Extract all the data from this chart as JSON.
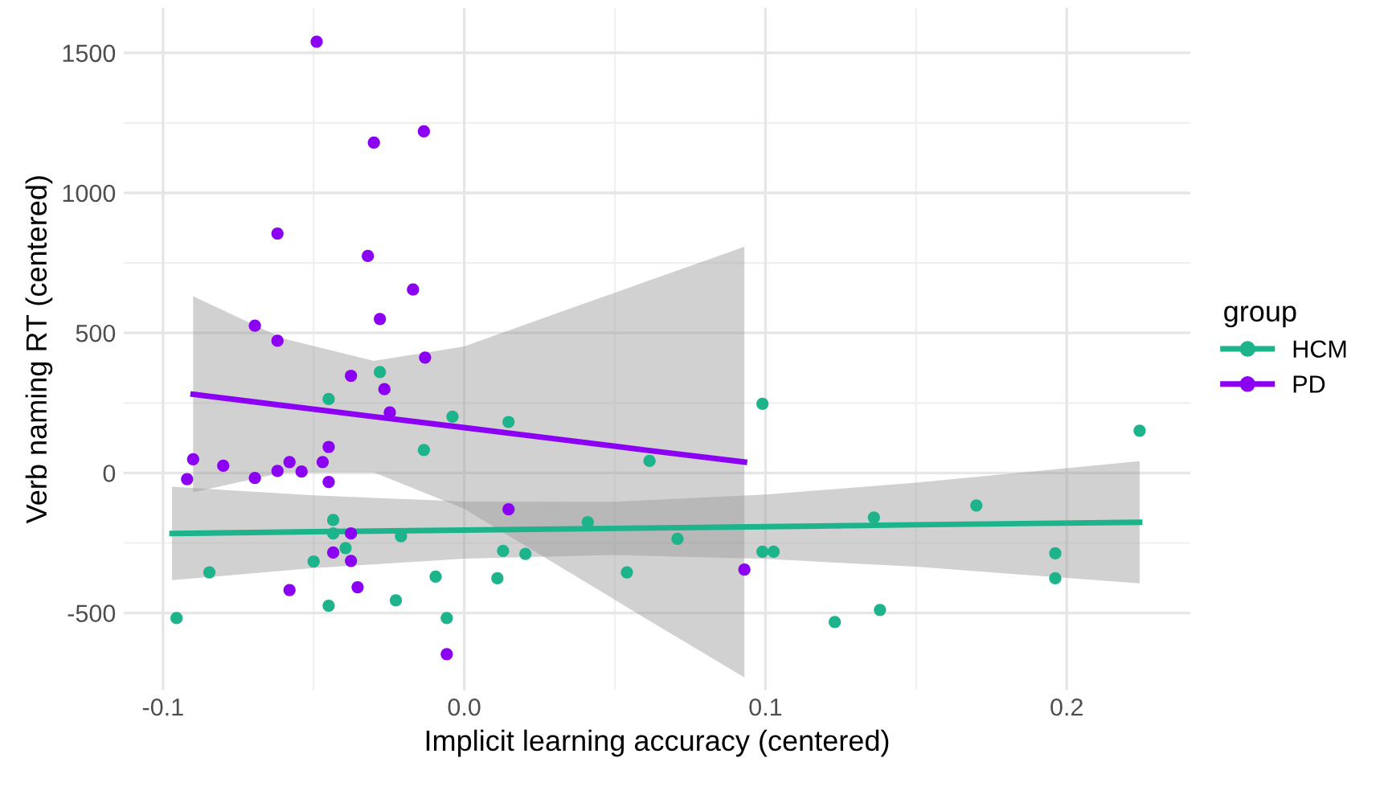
{
  "chart_data": {
    "type": "scatter",
    "xlabel": "Implicit learning accuracy (centered)",
    "ylabel": "Verb naming RT (centered)",
    "legend_title": "group",
    "legend": "right",
    "grid": true,
    "marker": "circle",
    "xlim": [
      -0.113,
      0.241
    ],
    "ylim": [
      -775,
      1660
    ],
    "xticks": [
      -0.1,
      {
        "value": 0.0,
        "label": "0.0"
      },
      0.1,
      0.2
    ],
    "yticks": [
      -500,
      0,
      500,
      1000,
      1500
    ],
    "series": [
      {
        "name": "HCM",
        "color": "#1db38b",
        "x": [
          -0.028,
          -0.045,
          -0.0039,
          -0.0134,
          -0.0435,
          -0.0435,
          -0.0394,
          -0.021,
          -0.05,
          -0.0846,
          -0.0095,
          -0.0955,
          -0.045,
          -0.0227,
          -0.0058,
          0.0147,
          0.0615,
          0.099,
          0.2242,
          0.041,
          0.0708,
          0.0129,
          0.0203,
          0.011,
          0.054,
          0.099,
          0.1027,
          0.136,
          0.17,
          0.1962,
          0.1962,
          0.123,
          0.138
        ],
        "values": [
          360,
          264,
          201,
          82,
          -168,
          -216,
          -268,
          -226,
          -316,
          -355,
          -370,
          -518,
          -474,
          -455,
          -518,
          182,
          43,
          247,
          151,
          -176,
          -235,
          -278,
          -289,
          -376,
          -355,
          -281,
          -281,
          -159,
          -116,
          -287,
          -376,
          -532,
          -489
        ]
      },
      {
        "name": "PD",
        "color": "#8b00f2",
        "x": [
          -0.049,
          -0.03,
          -0.0134,
          -0.062,
          -0.032,
          -0.017,
          -0.028,
          -0.0695,
          -0.062,
          -0.013,
          -0.0376,
          -0.0265,
          -0.0247,
          -0.09,
          -0.08,
          -0.092,
          -0.0695,
          -0.062,
          -0.058,
          -0.054,
          -0.047,
          -0.045,
          -0.045,
          -0.0376,
          -0.0435,
          -0.0376,
          -0.058,
          -0.0354,
          -0.0058,
          0.0147,
          0.093
        ],
        "values": [
          1540,
          1180,
          1220,
          855,
          775,
          655,
          550,
          526,
          472,
          412,
          347,
          299,
          216,
          49,
          26,
          -22,
          -18,
          7,
          39,
          5,
          39,
          93,
          -32,
          -216,
          -284,
          -314,
          -418,
          -408,
          -647,
          -130,
          -345
        ]
      },
      {
        "type": "line",
        "marker": "none",
        "color": "#1db38b",
        "x": [
          -0.097,
          -0.05,
          0.0,
          0.05,
          0.1,
          0.15,
          0.2242
        ],
        "values": [
          -216,
          -210,
          -204,
          -198,
          -192,
          -185,
          -176
        ],
        "lower": [
          -383,
          -340,
          -306,
          -293,
          -307,
          -335,
          -394
        ],
        "upper": [
          -49,
          -80,
          -102,
          -103,
          -77,
          -35,
          42
        ]
      },
      {
        "type": "line",
        "marker": "none",
        "color": "#8b00f2",
        "x": [
          -0.09,
          -0.06,
          -0.03,
          0.0,
          0.03,
          0.06,
          0.093
        ],
        "values": [
          281,
          241,
          201,
          162,
          122,
          82,
          39
        ],
        "lower": [
          -69,
          2,
          2,
          -128,
          -323,
          -518,
          -730
        ],
        "upper": [
          631,
          480,
          400,
          452,
          567,
          682,
          808
        ]
      }
    ]
  }
}
